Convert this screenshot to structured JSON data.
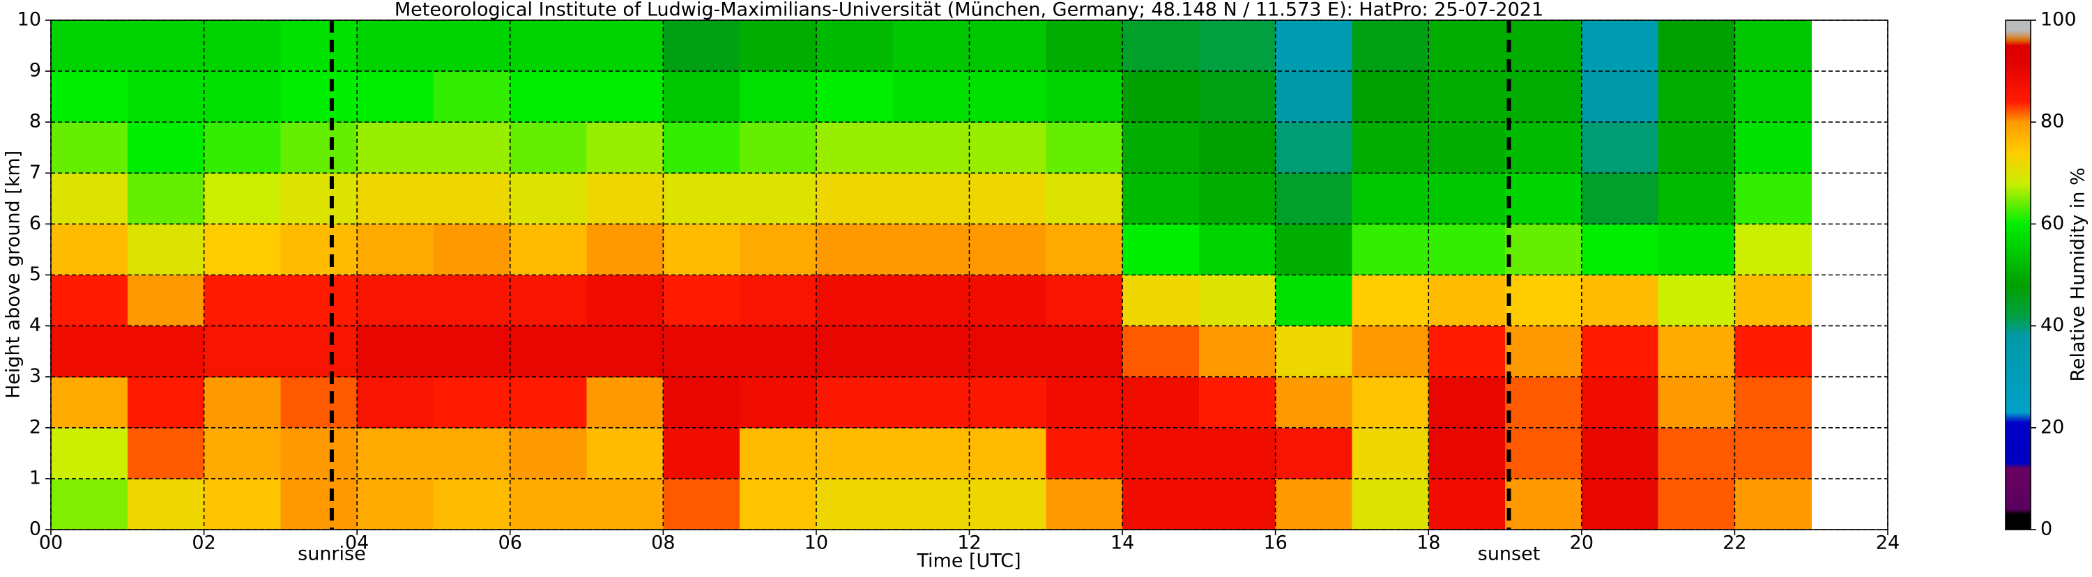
{
  "chart_data": {
    "type": "heatmap",
    "title": "Meteorological Institute of Ludwig-Maximilians-Universität (München, Germany; 48.148 N / 11.573 E):    HatPro: 25-07-2021",
    "xlabel": "Time [UTC]",
    "ylabel": "Height above ground [km]",
    "xlim": [
      0,
      24
    ],
    "ylim": [
      0,
      10
    ],
    "xticks": [
      {
        "value": 0,
        "label": "00"
      },
      {
        "value": 2,
        "label": "02"
      },
      {
        "value": 4,
        "label": "04"
      },
      {
        "value": 6,
        "label": "06"
      },
      {
        "value": 8,
        "label": "08"
      },
      {
        "value": 10,
        "label": "10"
      },
      {
        "value": 12,
        "label": "12"
      },
      {
        "value": 14,
        "label": "14"
      },
      {
        "value": 16,
        "label": "16"
      },
      {
        "value": 18,
        "label": "18"
      },
      {
        "value": 20,
        "label": "20"
      },
      {
        "value": 22,
        "label": "22"
      },
      {
        "value": 24,
        "label": "24"
      }
    ],
    "yticks": [
      0,
      1,
      2,
      3,
      4,
      5,
      6,
      7,
      8,
      9,
      10
    ],
    "grid": true,
    "x": [
      0,
      1,
      2,
      3,
      4,
      5,
      6,
      7,
      8,
      9,
      10,
      11,
      12,
      13,
      14,
      15,
      16,
      17,
      18,
      19,
      20,
      21,
      22,
      23
    ],
    "y": [
      0,
      1,
      2,
      3,
      4,
      5,
      6,
      7,
      8,
      9,
      10
    ],
    "z": [
      [
        65,
        72,
        75,
        80,
        78,
        76,
        78,
        78,
        82,
        75,
        72,
        72,
        72,
        80,
        88,
        88,
        80,
        70,
        88,
        80,
        90,
        82,
        80
      ],
      [
        68,
        82,
        78,
        80,
        78,
        78,
        80,
        76,
        88,
        76,
        76,
        76,
        76,
        85,
        88,
        88,
        86,
        72,
        90,
        82,
        90,
        82,
        82
      ],
      [
        78,
        84,
        80,
        82,
        86,
        84,
        84,
        80,
        90,
        88,
        85,
        85,
        85,
        88,
        88,
        84,
        80,
        75,
        90,
        82,
        88,
        80,
        82
      ],
      [
        88,
        88,
        86,
        86,
        90,
        90,
        90,
        90,
        90,
        90,
        90,
        90,
        90,
        90,
        82,
        80,
        72,
        80,
        84,
        80,
        84,
        78,
        84
      ],
      [
        84,
        80,
        84,
        84,
        86,
        86,
        86,
        88,
        84,
        86,
        88,
        88,
        88,
        86,
        72,
        70,
        58,
        74,
        76,
        74,
        76,
        68,
        76
      ],
      [
        76,
        70,
        74,
        76,
        78,
        80,
        76,
        80,
        76,
        78,
        80,
        80,
        80,
        78,
        60,
        56,
        50,
        62,
        62,
        64,
        60,
        58,
        68
      ],
      [
        70,
        64,
        68,
        70,
        72,
        72,
        70,
        72,
        70,
        70,
        72,
        72,
        72,
        70,
        52,
        50,
        44,
        54,
        54,
        56,
        44,
        52,
        62
      ],
      [
        64,
        60,
        62,
        64,
        66,
        66,
        64,
        66,
        62,
        64,
        66,
        66,
        66,
        64,
        50,
        48,
        40,
        50,
        50,
        52,
        40,
        50,
        58
      ],
      [
        60,
        58,
        58,
        60,
        60,
        62,
        60,
        60,
        54,
        58,
        60,
        58,
        58,
        56,
        48,
        46,
        38,
        48,
        50,
        50,
        38,
        50,
        56
      ],
      [
        56,
        56,
        56,
        58,
        56,
        56,
        56,
        56,
        46,
        50,
        52,
        54,
        54,
        50,
        44,
        42,
        34,
        46,
        50,
        50,
        34,
        48,
        54
      ]
    ],
    "annotations": [
      {
        "x": 3.67,
        "label": "sunrise"
      },
      {
        "x": 19.05,
        "label": "sunset"
      }
    ],
    "colorbar": {
      "label": "Relative Humidity in %",
      "zlim": [
        0,
        100
      ],
      "ticks": [
        0,
        20,
        40,
        60,
        80,
        100
      ],
      "colorscale": [
        [
          0,
          "#000000"
        ],
        [
          3,
          "#000000"
        ],
        [
          4,
          "#5a0060"
        ],
        [
          12,
          "#6a0060"
        ],
        [
          13,
          "#0000c0"
        ],
        [
          21,
          "#0000c8"
        ],
        [
          23,
          "#00a0c8"
        ],
        [
          38,
          "#009aa8"
        ],
        [
          42,
          "#00a040"
        ],
        [
          48,
          "#00a000"
        ],
        [
          60,
          "#00ee00"
        ],
        [
          68,
          "#ccee00"
        ],
        [
          74,
          "#ffcc00"
        ],
        [
          80,
          "#ff9900"
        ],
        [
          84,
          "#ff1a00"
        ],
        [
          92,
          "#e00000"
        ],
        [
          95,
          "#dd0000"
        ],
        [
          96,
          "#dd6600"
        ],
        [
          97,
          "#cc9966"
        ],
        [
          98,
          "#bbbbbb"
        ],
        [
          100,
          "#bbbbbb"
        ]
      ]
    }
  }
}
